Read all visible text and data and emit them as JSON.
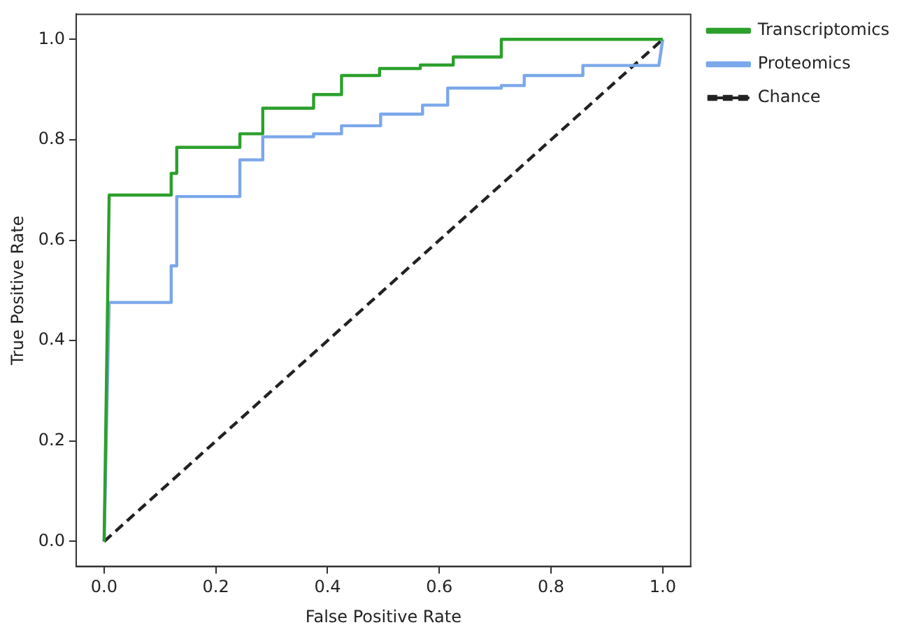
{
  "chart_data": {
    "type": "line",
    "xlabel": "False Positive Rate",
    "ylabel": "True Positive Rate",
    "xlim": [
      -0.05,
      1.05
    ],
    "ylim": [
      -0.05,
      1.05
    ],
    "xticks": [
      {
        "value": 0,
        "label": "0.0"
      },
      {
        "value": 0.2,
        "label": "0.2"
      },
      {
        "value": 0.4,
        "label": "0.4"
      },
      {
        "value": 0.6,
        "label": "0.6"
      },
      {
        "value": 0.8,
        "label": "0.8"
      },
      {
        "value": 1,
        "label": "1.0"
      }
    ],
    "yticks": [
      {
        "value": 0,
        "label": "0.0"
      },
      {
        "value": 0.2,
        "label": "0.2"
      },
      {
        "value": 0.4,
        "label": "0.4"
      },
      {
        "value": 0.6,
        "label": "0.6"
      },
      {
        "value": 0.8,
        "label": "0.8"
      },
      {
        "value": 1,
        "label": "1.0"
      }
    ],
    "grid": false,
    "legend": "top right",
    "marker": "none",
    "series": [
      {
        "name": "Transcriptomics",
        "color": "#2ca02c",
        "line_style": "solid",
        "x": [
          0,
          0.009,
          0.12,
          0.12,
          0.13,
          0.13,
          0.243,
          0.243,
          0.284,
          0.284,
          0.375,
          0.375,
          0.425,
          0.425,
          0.493,
          0.493,
          0.566,
          0.566,
          0.625,
          0.625,
          0.711,
          0.711,
          1
        ],
        "values": [
          0,
          0.69,
          0.69,
          0.733,
          0.733,
          0.785,
          0.785,
          0.812,
          0.812,
          0.863,
          0.863,
          0.89,
          0.89,
          0.928,
          0.928,
          0.942,
          0.942,
          0.949,
          0.949,
          0.965,
          0.965,
          1,
          1
        ]
      },
      {
        "name": "Proteomics",
        "color": "#7ba7eb",
        "line_style": "solid",
        "x": [
          0,
          0.009,
          0.12,
          0.12,
          0.13,
          0.13,
          0.243,
          0.243,
          0.284,
          0.284,
          0.375,
          0.375,
          0.425,
          0.425,
          0.495,
          0.495,
          0.57,
          0.57,
          0.615,
          0.615,
          0.711,
          0.711,
          0.752,
          0.752,
          0.857,
          0.857,
          0.993,
          1
        ],
        "values": [
          0,
          0.476,
          0.476,
          0.549,
          0.549,
          0.687,
          0.687,
          0.76,
          0.76,
          0.806,
          0.806,
          0.812,
          0.812,
          0.828,
          0.828,
          0.851,
          0.851,
          0.869,
          0.869,
          0.903,
          0.903,
          0.908,
          0.908,
          0.928,
          0.928,
          0.948,
          0.948,
          1
        ]
      },
      {
        "name": "Chance",
        "color": "#222222",
        "line_style": "dashed",
        "x": [
          0,
          1
        ],
        "values": [
          0,
          1
        ]
      }
    ]
  }
}
